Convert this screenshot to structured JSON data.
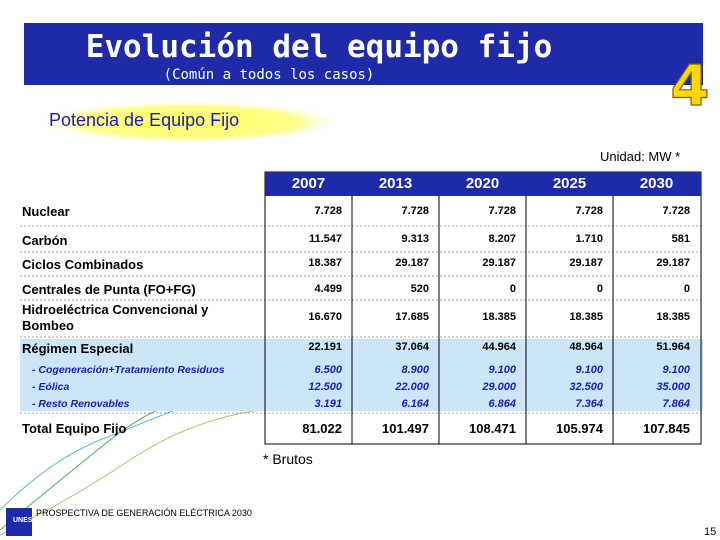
{
  "header": {
    "title": "Evolución del equipo fijo",
    "subtitle": "(Común a todos los casos)",
    "badge": "4"
  },
  "section": {
    "label": "Potencia de Equipo Fijo"
  },
  "unit": "Unidad: MW *",
  "table": {
    "columns": [
      "2007",
      "2013",
      "2020",
      "2025",
      "2030"
    ],
    "rows": [
      {
        "label": "Nuclear",
        "values": [
          "7.728",
          "7.728",
          "7.728",
          "7.728",
          "7.728"
        ]
      },
      {
        "label": "Carbón",
        "values": [
          "11.547",
          "9.313",
          "8.207",
          "1.710",
          "581"
        ]
      },
      {
        "label": "Ciclos Combinados",
        "values": [
          "18.387",
          "29.187",
          "29.187",
          "29.187",
          "29.187"
        ]
      },
      {
        "label": "Centrales de Punta (FO+FG)",
        "values": [
          "4.499",
          "520",
          "0",
          "0",
          "0"
        ]
      },
      {
        "label_line1": "Hidroeléctrica Convencional y",
        "label_line2": "Bombeo",
        "values": [
          "16.670",
          "17.685",
          "18.385",
          "18.385",
          "18.385"
        ]
      },
      {
        "label": "Régimen Especial",
        "values": [
          "22.191",
          "37.064",
          "44.964",
          "48.964",
          "51.964"
        ]
      }
    ],
    "subrows": [
      {
        "label": "- Cogeneración+Tratamiento Residuos",
        "values": [
          "6.500",
          "8.900",
          "9.100",
          "9.100",
          "9.100"
        ]
      },
      {
        "label": "- Eólica",
        "values": [
          "12.500",
          "22.000",
          "29.000",
          "32.500",
          "35.000"
        ]
      },
      {
        "label": "- Resto Renovables",
        "values": [
          "3.191",
          "6.164",
          "6.864",
          "7.364",
          "7.864"
        ]
      }
    ],
    "total": {
      "label": "Total Equipo Fijo",
      "values": [
        "81.022",
        "101.497",
        "108.471",
        "105.974",
        "107.845"
      ]
    }
  },
  "footnote": "* Brutos",
  "footer": {
    "text": "PROSPECTIVA DE GENERACIÓN ELÉCTRICA 2030",
    "logo": "UNESA",
    "page": "15"
  },
  "colors": {
    "banner": "#1f2aa8",
    "section_glow": "#ffff66",
    "highlight": "#cce6f8",
    "subrow_text": "#1b1bb8",
    "badge": "#ffd800"
  }
}
